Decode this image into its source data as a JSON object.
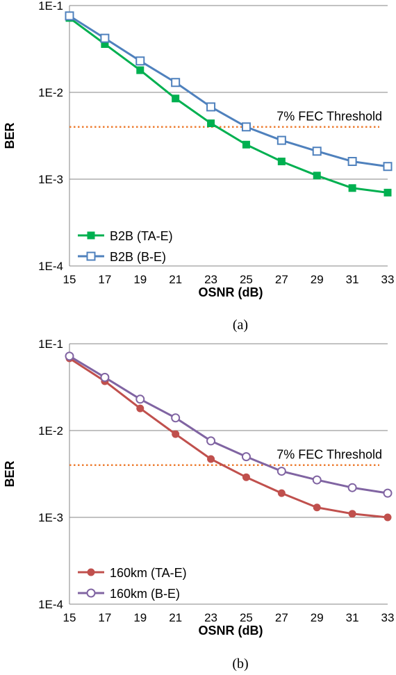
{
  "chart_data": [
    {
      "type": "line",
      "caption": "(a)",
      "xlabel": "OSNR (dB)",
      "ylabel": "BER",
      "x": [
        15,
        17,
        19,
        21,
        23,
        25,
        27,
        29,
        31,
        33
      ],
      "xlim": [
        15,
        33
      ],
      "yscale": "log",
      "ylim": [
        0.0001,
        0.1
      ],
      "yticks": [
        "1E-4",
        "1E-3",
        "1E-2",
        "1E-1"
      ],
      "grid": "horizontal",
      "legend_position": "bottom-left",
      "threshold": {
        "label": "7% FEC Threshold",
        "value": 0.004,
        "color": "#ED7D31"
      },
      "series": [
        {
          "name": "B2B (TA-E)",
          "color": "#00B050",
          "marker": "filled-square",
          "values": [
            0.072,
            0.036,
            0.018,
            0.0085,
            0.0044,
            0.0025,
            0.0016,
            0.0011,
            0.00079,
            0.0007
          ]
        },
        {
          "name": "B2B (B-E)",
          "color": "#4F81BD",
          "marker": "hollow-square",
          "values": [
            0.076,
            0.042,
            0.023,
            0.013,
            0.0068,
            0.004,
            0.0028,
            0.0021,
            0.0016,
            0.0014
          ]
        }
      ]
    },
    {
      "type": "line",
      "caption": "(b)",
      "xlabel": "OSNR (dB)",
      "ylabel": "BER",
      "x": [
        15,
        17,
        19,
        21,
        23,
        25,
        27,
        29,
        31,
        33
      ],
      "xlim": [
        15,
        33
      ],
      "yscale": "log",
      "ylim": [
        0.0001,
        0.1
      ],
      "yticks": [
        "1E-4",
        "1E-3",
        "1E-2",
        "1E-1"
      ],
      "grid": "horizontal",
      "legend_position": "bottom-left",
      "threshold": {
        "label": "7% FEC Threshold",
        "value": 0.004,
        "color": "#ED7D31"
      },
      "series": [
        {
          "name": "160km (TA-E)",
          "color": "#C0504D",
          "marker": "filled-circle",
          "values": [
            0.068,
            0.037,
            0.018,
            0.0091,
            0.0047,
            0.0029,
            0.0019,
            0.0013,
            0.0011,
            0.001
          ]
        },
        {
          "name": "160km (B-E)",
          "color": "#8064A2",
          "marker": "hollow-circle",
          "values": [
            0.072,
            0.041,
            0.023,
            0.014,
            0.0076,
            0.005,
            0.0034,
            0.0027,
            0.0022,
            0.0019
          ]
        }
      ]
    }
  ]
}
